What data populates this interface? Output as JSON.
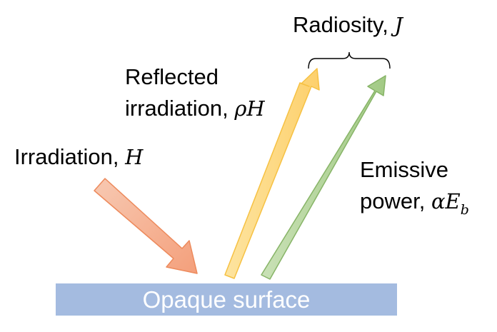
{
  "surface": {
    "label": "Opaque surface",
    "color": "#a4bbe0",
    "label_color": "#ffffff"
  },
  "irradiation": {
    "text": "Irradiation, ",
    "symbol": "H",
    "arrow_color": "#f4a07c"
  },
  "reflected": {
    "line1": "Reflected",
    "line2_text": "irradiation, ",
    "symbol": "ρH",
    "arrow_color": "#fdd57a"
  },
  "emissive": {
    "line1": "Emissive",
    "line2_text": "power, ",
    "symbol": "αE",
    "subscript": "b",
    "arrow_color": "#a9cf8f"
  },
  "radiosity": {
    "text": "Radiosity, ",
    "symbol": "J",
    "brace": "curly-brace"
  }
}
